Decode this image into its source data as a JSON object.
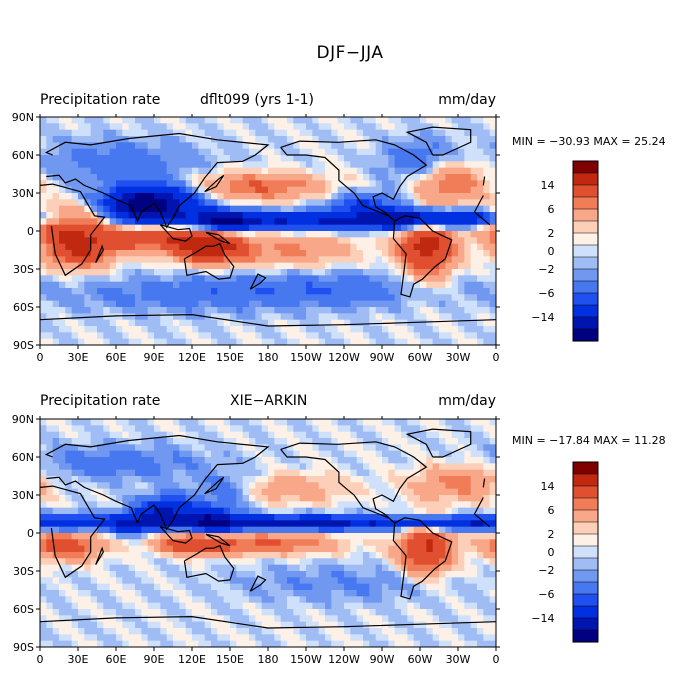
{
  "figure": {
    "title": "DJF−JJA"
  },
  "colors": {
    "levels": [
      "#000080",
      "#0015b0",
      "#0030e0",
      "#2050f0",
      "#4878f0",
      "#7098f0",
      "#a0bcf4",
      "#cfe0fa",
      "#fdf0e6",
      "#fcd0b8",
      "#f8a888",
      "#f07c58",
      "#e05030",
      "#c02810",
      "#800000"
    ],
    "coast": "#000000",
    "ocean_background": "#cfe0fa"
  },
  "chart_data": [
    {
      "type": "heatmap",
      "panel": "top",
      "variable": "Precipitation rate",
      "dataset": "dflt099 (yrs 1-1)",
      "units": "mm/day",
      "stats": {
        "min": -30.93,
        "max": 25.24,
        "text": "MIN = −30.93 MAX =  25.24"
      },
      "x_ticks": [
        "0",
        "30E",
        "60E",
        "90E",
        "120E",
        "150E",
        "180",
        "150W",
        "120W",
        "90W",
        "60W",
        "30W",
        "0"
      ],
      "y_ticks": [
        "90N",
        "60N",
        "30N",
        "0",
        "30S",
        "60S",
        "90S"
      ],
      "xlim": [
        0,
        360
      ],
      "ylim": [
        -90,
        90
      ],
      "colorbar_ticks": [
        "14",
        "6",
        "2",
        "0",
        "−2",
        "−6",
        "−14"
      ],
      "field_centers": [
        {
          "lon": 20,
          "lat": 5,
          "value": 8,
          "sx": 25,
          "sy": 10
        },
        {
          "lon": 30,
          "lat": -15,
          "value": 10,
          "sx": 18,
          "sy": 10
        },
        {
          "lon": 75,
          "lat": 20,
          "value": -8,
          "sx": 20,
          "sy": 10
        },
        {
          "lon": 95,
          "lat": 22,
          "value": -12,
          "sx": 25,
          "sy": 10
        },
        {
          "lon": 70,
          "lat": -5,
          "value": 6,
          "sx": 20,
          "sy": 8
        },
        {
          "lon": 115,
          "lat": -5,
          "value": 8,
          "sx": 25,
          "sy": 8
        },
        {
          "lon": 135,
          "lat": -15,
          "value": 10,
          "sx": 20,
          "sy": 8
        },
        {
          "lon": 145,
          "lat": 8,
          "value": -10,
          "sx": 15,
          "sy": 6
        },
        {
          "lon": 170,
          "lat": 35,
          "value": 6,
          "sx": 40,
          "sy": 8
        },
        {
          "lon": 200,
          "lat": -15,
          "value": 4,
          "sx": 35,
          "sy": 10
        },
        {
          "lon": 205,
          "lat": 8,
          "value": -10,
          "sx": 80,
          "sy": 5
        },
        {
          "lon": 295,
          "lat": 10,
          "value": -10,
          "sx": 20,
          "sy": 6
        },
        {
          "lon": 305,
          "lat": -12,
          "value": 12,
          "sx": 15,
          "sy": 18
        },
        {
          "lon": 325,
          "lat": 40,
          "value": 6,
          "sx": 20,
          "sy": 12
        },
        {
          "lon": 340,
          "lat": 10,
          "value": -8,
          "sx": 25,
          "sy": 5
        },
        {
          "lon": 300,
          "lat": 55,
          "value": -4,
          "sx": 20,
          "sy": 12
        },
        {
          "lon": 60,
          "lat": 55,
          "value": -3,
          "sx": 50,
          "sy": 12
        },
        {
          "lon": 240,
          "lat": -45,
          "value": -3,
          "sx": 60,
          "sy": 10
        },
        {
          "lon": 120,
          "lat": -50,
          "value": -3,
          "sx": 70,
          "sy": 10
        },
        {
          "lon": 255,
          "lat": 20,
          "value": -6,
          "sx": 20,
          "sy": 8
        }
      ]
    },
    {
      "type": "heatmap",
      "panel": "bottom",
      "variable": "Precipitation rate",
      "dataset": "XIE−ARKIN",
      "units": "mm/day",
      "stats": {
        "min": -17.84,
        "max": 11.28,
        "text": "MIN = −17.84 MAX =  11.28"
      },
      "x_ticks": [
        "0",
        "30E",
        "60E",
        "90E",
        "120E",
        "150E",
        "180",
        "150W",
        "120W",
        "90W",
        "60W",
        "30W",
        "0"
      ],
      "y_ticks": [
        "90N",
        "60N",
        "30N",
        "0",
        "30S",
        "60S",
        "90S"
      ],
      "xlim": [
        0,
        360
      ],
      "ylim": [
        -90,
        90
      ],
      "colorbar_ticks": [
        "14",
        "6",
        "2",
        "0",
        "−2",
        "−6",
        "−14"
      ],
      "field_centers": [
        {
          "lon": 20,
          "lat": -10,
          "value": 8,
          "sx": 20,
          "sy": 8
        },
        {
          "lon": 30,
          "lat": 8,
          "value": -6,
          "sx": 25,
          "sy": 5
        },
        {
          "lon": 75,
          "lat": 8,
          "value": -8,
          "sx": 15,
          "sy": 6
        },
        {
          "lon": 100,
          "lat": 18,
          "value": -10,
          "sx": 15,
          "sy": 8
        },
        {
          "lon": 120,
          "lat": -8,
          "value": 8,
          "sx": 20,
          "sy": 6
        },
        {
          "lon": 135,
          "lat": 10,
          "value": -10,
          "sx": 15,
          "sy": 8
        },
        {
          "lon": 180,
          "lat": -8,
          "value": 6,
          "sx": 40,
          "sy": 6
        },
        {
          "lon": 210,
          "lat": 8,
          "value": -12,
          "sx": 70,
          "sy": 4
        },
        {
          "lon": 190,
          "lat": 35,
          "value": 4,
          "sx": 35,
          "sy": 8
        },
        {
          "lon": 305,
          "lat": -12,
          "value": 10,
          "sx": 15,
          "sy": 15
        },
        {
          "lon": 330,
          "lat": 40,
          "value": 5,
          "sx": 25,
          "sy": 10
        },
        {
          "lon": 330,
          "lat": 8,
          "value": -8,
          "sx": 30,
          "sy": 4
        },
        {
          "lon": 60,
          "lat": 55,
          "value": -3,
          "sx": 50,
          "sy": 10
        },
        {
          "lon": 150,
          "lat": 35,
          "value": -4,
          "sx": 20,
          "sy": 8
        },
        {
          "lon": 240,
          "lat": -40,
          "value": -2,
          "sx": 60,
          "sy": 10
        }
      ]
    }
  ]
}
